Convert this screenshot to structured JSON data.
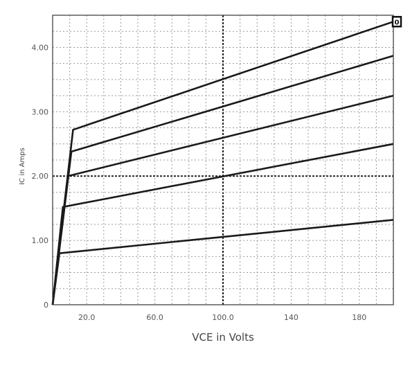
{
  "chart_data": {
    "type": "line",
    "title": "",
    "xlabel": "VCE in Volts",
    "ylabel": "IC in Amps",
    "xlim": [
      0,
      200
    ],
    "ylim": [
      0,
      4.5
    ],
    "x_ticks": [
      20,
      60,
      100,
      140,
      180
    ],
    "x_tick_labels": [
      "20.0",
      "60.0",
      "100.0",
      "140",
      "180"
    ],
    "y_ticks": [
      0,
      1,
      2,
      3,
      4
    ],
    "y_tick_labels": [
      "0",
      "1.00",
      "2.00",
      "3.00",
      "4.00"
    ],
    "grid": true,
    "marker_label": "0",
    "series": [
      {
        "points": [
          [
            0,
            0
          ],
          [
            4,
            0.8
          ],
          [
            200,
            1.32
          ]
        ]
      },
      {
        "points": [
          [
            0,
            0
          ],
          [
            6,
            1.52
          ],
          [
            200,
            2.5
          ]
        ]
      },
      {
        "points": [
          [
            0,
            0
          ],
          [
            9,
            2.0
          ],
          [
            200,
            3.25
          ]
        ]
      },
      {
        "points": [
          [
            0,
            0
          ],
          [
            11,
            2.38
          ],
          [
            200,
            3.87
          ]
        ]
      },
      {
        "points": [
          [
            0,
            0
          ],
          [
            12,
            2.72
          ],
          [
            200,
            4.4
          ]
        ]
      }
    ]
  }
}
